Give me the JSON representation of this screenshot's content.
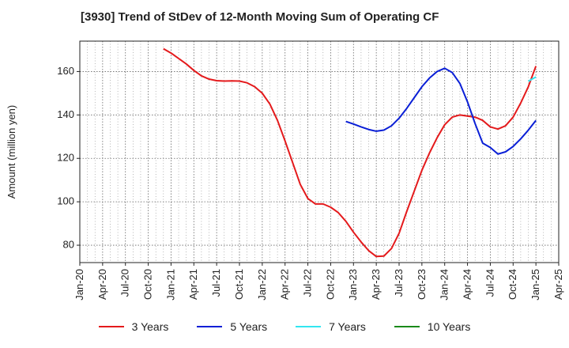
{
  "chart_data": {
    "type": "line",
    "title": "[3930]  Trend of StDev of 12-Month Moving Sum of Operating CF",
    "xlabel": "",
    "ylabel": "Amount (million yen)",
    "ylim": [
      72,
      174
    ],
    "yticks": [
      80,
      100,
      120,
      140,
      160
    ],
    "xticks": [
      "Jan-20",
      "Apr-20",
      "Jul-20",
      "Oct-20",
      "Jan-21",
      "Apr-21",
      "Jul-21",
      "Oct-21",
      "Jan-22",
      "Apr-22",
      "Jul-22",
      "Oct-22",
      "Jan-23",
      "Apr-23",
      "Jul-23",
      "Oct-23",
      "Jan-24",
      "Apr-24",
      "Jul-24",
      "Oct-24",
      "Jan-25",
      "Apr-25"
    ],
    "grid": true,
    "legend_position": "bottom",
    "series": [
      {
        "name": "3 Years",
        "color": "#e41a1c",
        "start": "Dec-20",
        "values": [
          170.5,
          168.5,
          166,
          163.5,
          160.5,
          158,
          156.5,
          155.8,
          155.6,
          155.7,
          155.6,
          154.8,
          153,
          150,
          145,
          137.5,
          128,
          118,
          108,
          101.5,
          99,
          99,
          97.5,
          95,
          91,
          86,
          81.5,
          77.5,
          74.8,
          75,
          78.5,
          85.5,
          95.5,
          105,
          114.5,
          122.5,
          129.5,
          135.5,
          139,
          140,
          139.5,
          139,
          137.5,
          134.5,
          133.5,
          135,
          139,
          145.5,
          153,
          162.5
        ]
      },
      {
        "name": "5 Years",
        "color": "#0a1fd6",
        "start": "Dec-22",
        "values": [
          137,
          135.8,
          134.5,
          133.3,
          132.5,
          133,
          135,
          138.5,
          143,
          148,
          153,
          157,
          160,
          161.5,
          159.5,
          154.5,
          146,
          136,
          127,
          125,
          122,
          123,
          125.5,
          129,
          133,
          137.5
        ]
      },
      {
        "name": "7 Years",
        "color": "#33e6f0",
        "start": "Dec-24",
        "values": [
          155.5,
          157.5
        ]
      },
      {
        "name": "10 Years",
        "color": "#1a8a1a",
        "start": "Jan-25",
        "values": []
      }
    ]
  }
}
